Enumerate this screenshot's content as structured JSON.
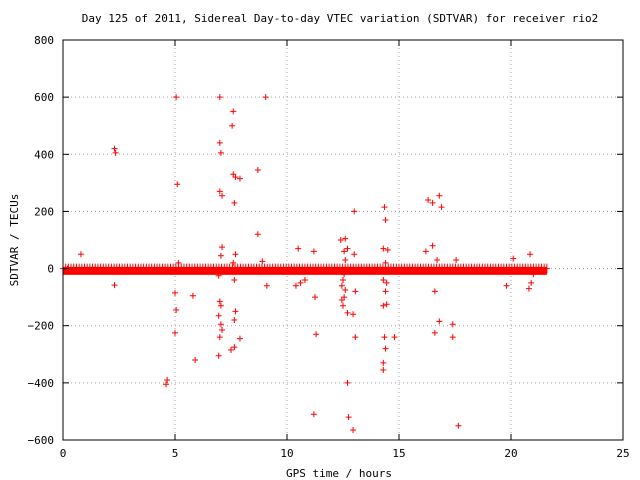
{
  "chart_data": {
    "type": "scatter",
    "title": "Day 125 of 2011, Sidereal Day-to-day VTEC variation (SDTVAR) for receiver rio2",
    "xlabel": "GPS time / hours",
    "ylabel": "SDTVAR / TECUs",
    "xlim": [
      0,
      25
    ],
    "ylim": [
      -600,
      800
    ],
    "xticks": [
      "0",
      "5",
      "10",
      "15",
      "20",
      "25"
    ],
    "yticks": [
      "−600",
      "−400",
      "−200",
      "0",
      "200",
      "400",
      "600",
      "800"
    ],
    "xtick_values": [
      0,
      5,
      10,
      15,
      20,
      25
    ],
    "ytick_values": [
      -600,
      -400,
      -200,
      0,
      200,
      400,
      600,
      800
    ],
    "grid": true,
    "marker": "+",
    "color": "#ff0000",
    "dense_band": {
      "x_start": 0,
      "x_end": 21.6,
      "y_min": -6,
      "y_max": 6,
      "label": "near-zero values"
    },
    "series": [
      {
        "name": "SDTVAR",
        "points": [
          [
            0.2,
            0
          ],
          [
            0.8,
            50
          ],
          [
            2.3,
            420
          ],
          [
            2.35,
            405
          ],
          [
            2.3,
            -58
          ],
          [
            4.65,
            -390
          ],
          [
            4.6,
            -405
          ],
          [
            5.05,
            600
          ],
          [
            5.1,
            295
          ],
          [
            5.0,
            -85
          ],
          [
            5.05,
            -145
          ],
          [
            5.0,
            -225
          ],
          [
            5.15,
            20
          ],
          [
            5.8,
            -95
          ],
          [
            5.9,
            -320
          ],
          [
            7.0,
            600
          ],
          [
            7.0,
            440
          ],
          [
            7.05,
            405
          ],
          [
            7.0,
            270
          ],
          [
            7.1,
            255
          ],
          [
            7.1,
            75
          ],
          [
            7.05,
            45
          ],
          [
            6.95,
            -25
          ],
          [
            7.0,
            -115
          ],
          [
            7.05,
            -130
          ],
          [
            6.95,
            -165
          ],
          [
            7.05,
            -195
          ],
          [
            7.1,
            -215
          ],
          [
            7.0,
            -240
          ],
          [
            6.95,
            -305
          ],
          [
            7.6,
            550
          ],
          [
            7.55,
            500
          ],
          [
            7.6,
            330
          ],
          [
            7.7,
            320
          ],
          [
            7.9,
            315
          ],
          [
            7.65,
            230
          ],
          [
            7.7,
            50
          ],
          [
            7.6,
            20
          ],
          [
            7.65,
            -40
          ],
          [
            7.7,
            -150
          ],
          [
            7.65,
            -180
          ],
          [
            7.9,
            -245
          ],
          [
            7.65,
            -275
          ],
          [
            7.5,
            -285
          ],
          [
            8.7,
            345
          ],
          [
            8.7,
            120
          ],
          [
            8.9,
            25
          ],
          [
            9.05,
            600
          ],
          [
            9.1,
            -60
          ],
          [
            10.5,
            70
          ],
          [
            10.8,
            -40
          ],
          [
            10.6,
            -50
          ],
          [
            10.4,
            -60
          ],
          [
            11.2,
            60
          ],
          [
            11.25,
            -100
          ],
          [
            11.3,
            -230
          ],
          [
            11.2,
            -510
          ],
          [
            12.4,
            100
          ],
          [
            12.6,
            105
          ],
          [
            12.7,
            70
          ],
          [
            12.55,
            60
          ],
          [
            12.6,
            30
          ],
          [
            12.5,
            -40
          ],
          [
            12.45,
            -60
          ],
          [
            12.6,
            -75
          ],
          [
            12.55,
            -100
          ],
          [
            12.45,
            -110
          ],
          [
            12.5,
            -130
          ],
          [
            12.7,
            -155
          ],
          [
            12.75,
            -520
          ],
          [
            12.7,
            -400
          ],
          [
            12.55,
            -20
          ],
          [
            13.0,
            200
          ],
          [
            13.05,
            -80
          ],
          [
            12.95,
            -160
          ],
          [
            13.05,
            -240
          ],
          [
            12.95,
            -565
          ],
          [
            13.0,
            50
          ],
          [
            14.35,
            215
          ],
          [
            14.4,
            170
          ],
          [
            14.3,
            70
          ],
          [
            14.5,
            65
          ],
          [
            14.4,
            20
          ],
          [
            14.3,
            -40
          ],
          [
            14.45,
            -50
          ],
          [
            14.4,
            -80
          ],
          [
            14.3,
            -130
          ],
          [
            14.45,
            -125
          ],
          [
            14.35,
            -240
          ],
          [
            14.4,
            -280
          ],
          [
            14.3,
            -330
          ],
          [
            14.3,
            -355
          ],
          [
            14.8,
            -240
          ],
          [
            16.3,
            240
          ],
          [
            16.5,
            230
          ],
          [
            16.8,
            255
          ],
          [
            16.9,
            215
          ],
          [
            16.5,
            80
          ],
          [
            16.2,
            60
          ],
          [
            16.7,
            30
          ],
          [
            16.6,
            -80
          ],
          [
            16.6,
            -225
          ],
          [
            16.8,
            -185
          ],
          [
            17.4,
            -195
          ],
          [
            17.4,
            -240
          ],
          [
            17.65,
            -550
          ],
          [
            17.55,
            30
          ],
          [
            19.8,
            -60
          ],
          [
            20.1,
            35
          ],
          [
            20.85,
            50
          ],
          [
            20.9,
            -50
          ],
          [
            20.8,
            -70
          ],
          [
            21.0,
            -20
          ]
        ]
      }
    ]
  }
}
